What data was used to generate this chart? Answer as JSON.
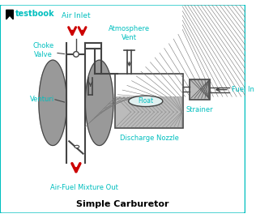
{
  "title": "Simple Carburetor",
  "label_color": "#00BFBF",
  "border_color": "#00BFBF",
  "background": "#FFFFFF",
  "arrow_red": "#CC0000",
  "line_color": "#444444",
  "fill_gray": "#999999",
  "fill_light_gray": "#BBBBBB",
  "labels": {
    "air_inlet": "Air Inlet",
    "choke_valve": "Choke\nValve",
    "venturi": "Venturi",
    "atmosphere_vent": "Atmosphere\nVent",
    "float": "Float",
    "discharge_nozzle": "Discharge Nozzle",
    "air_fuel_out": "Air-Fuel Mixture Out",
    "fuel_in": "Fuel In",
    "strainer": "Strainer",
    "testbook": "testbook"
  }
}
